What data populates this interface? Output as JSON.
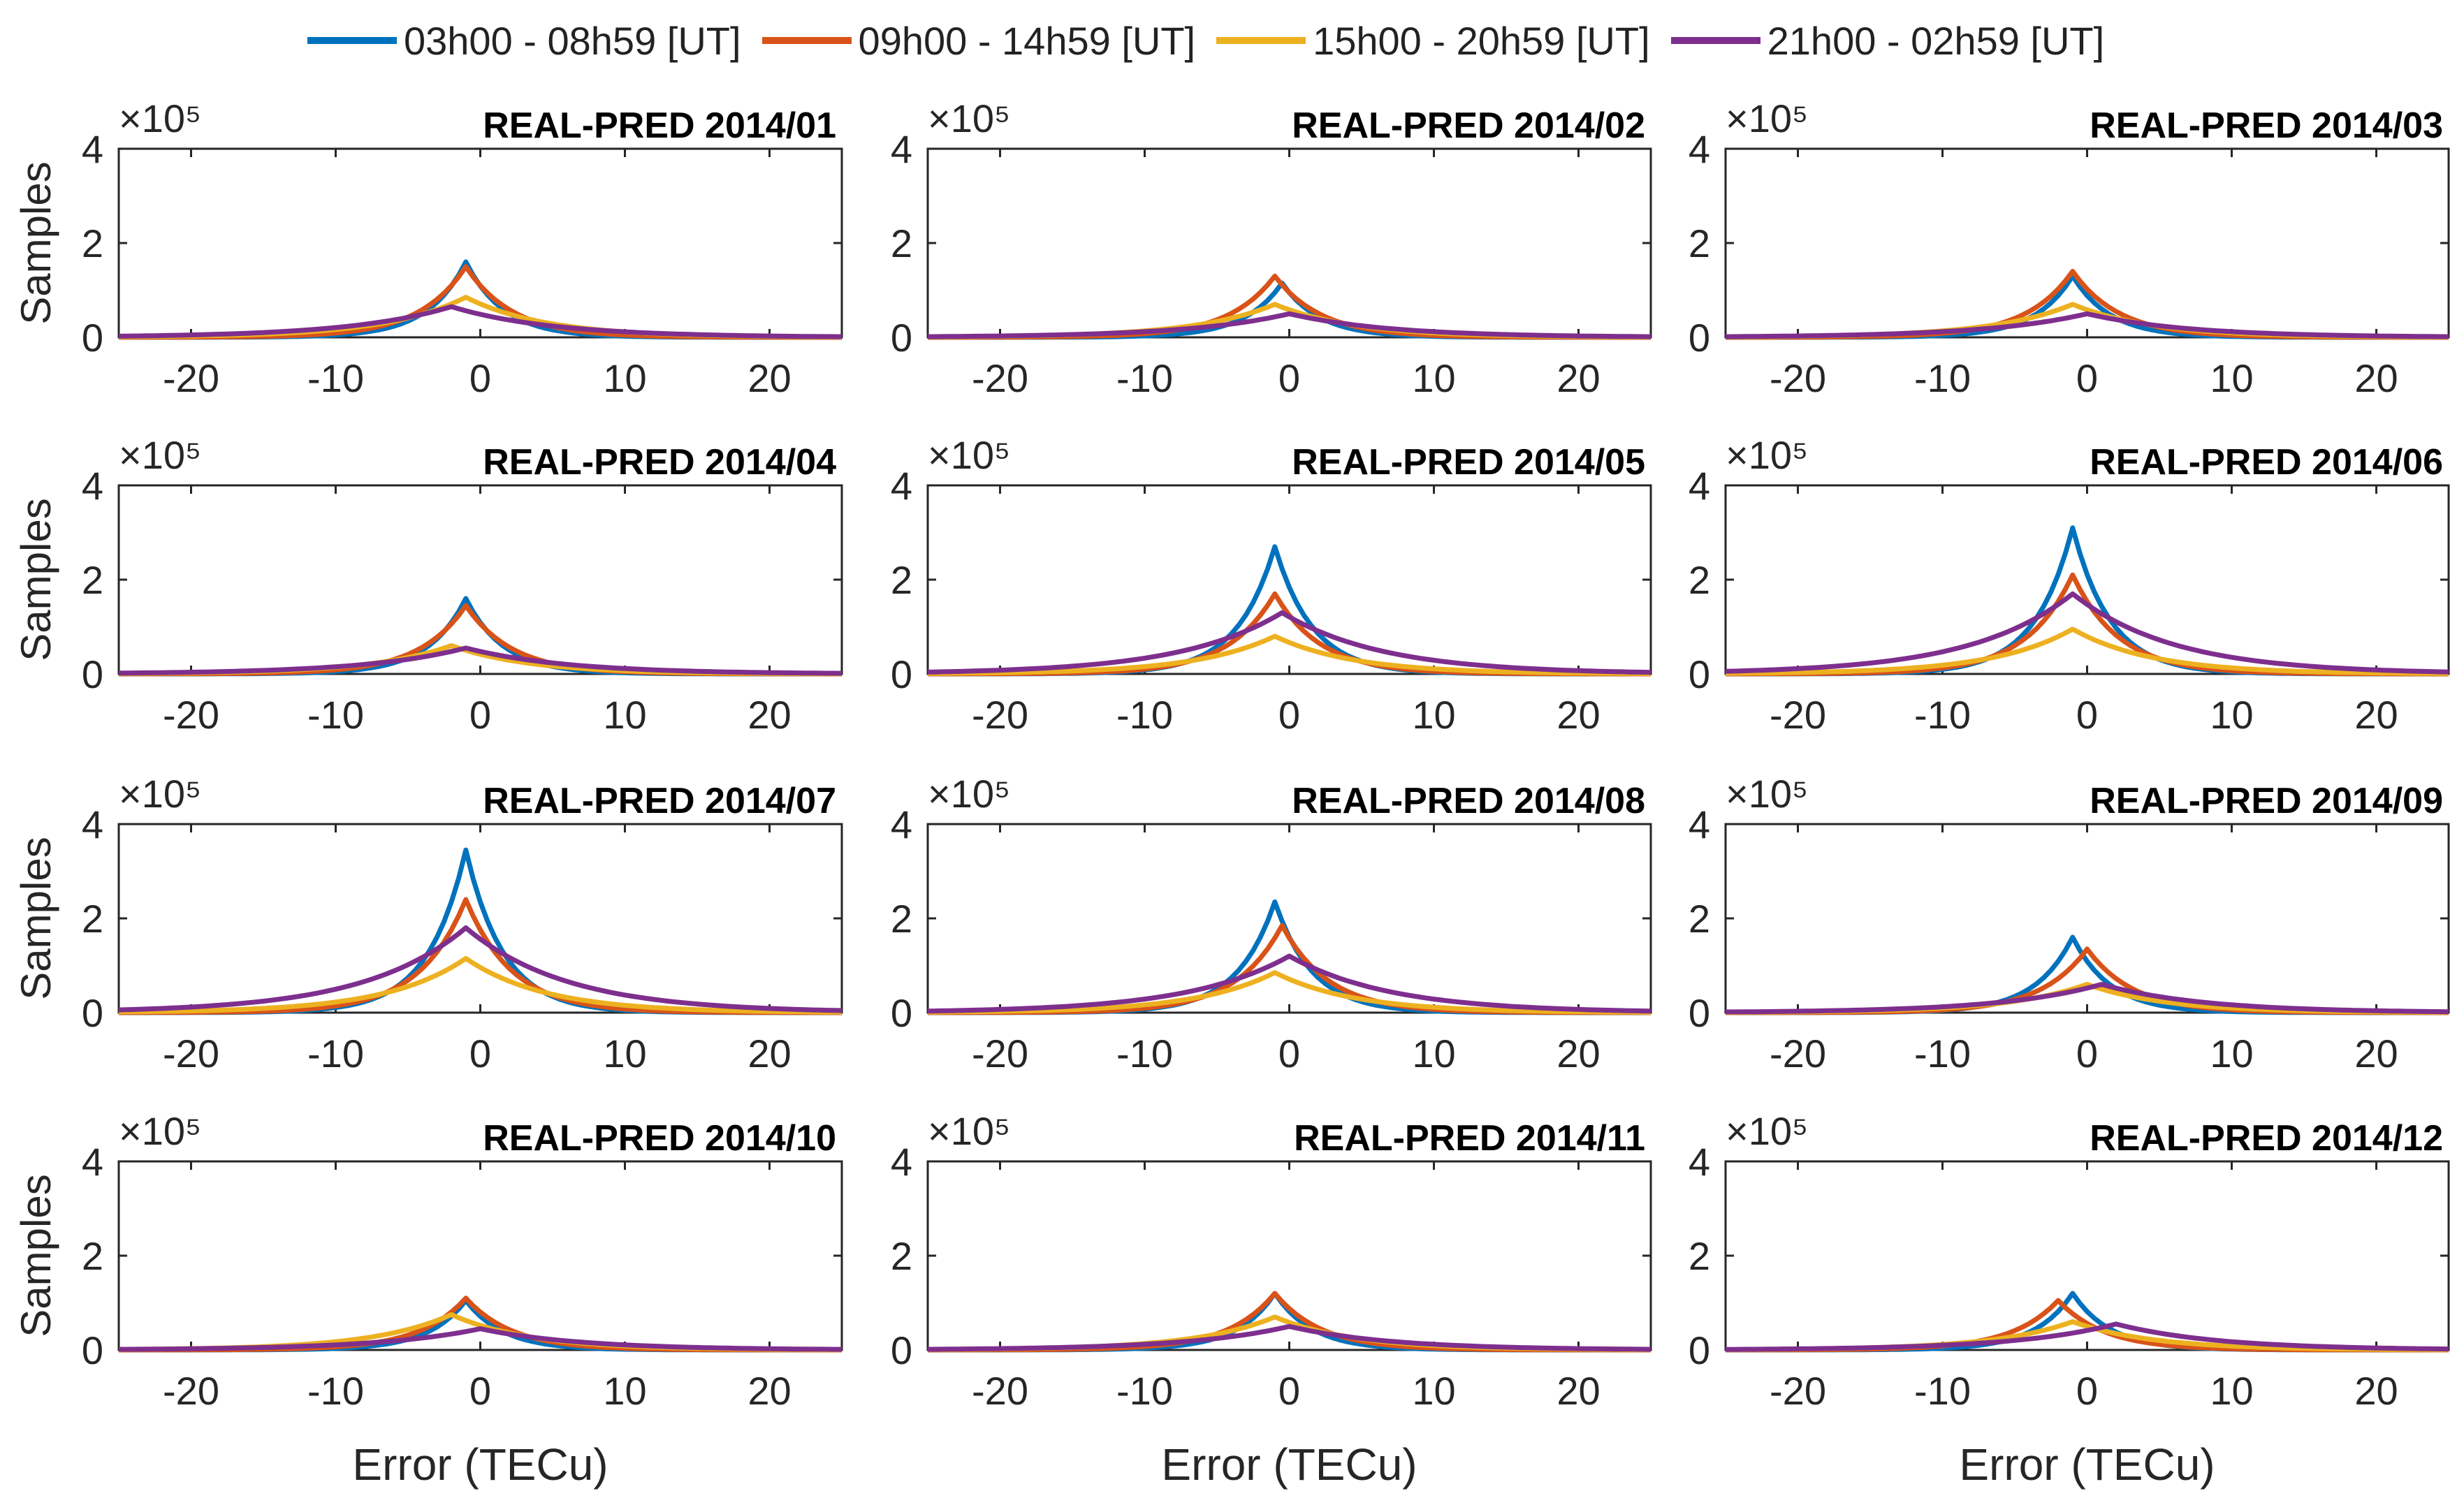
{
  "legend": [
    {
      "name": "03h00 - 08h59 [UT]",
      "color": "#0072BD"
    },
    {
      "name": "09h00 - 14h59 [UT]",
      "color": "#D95319"
    },
    {
      "name": "15h00 - 20h59 [UT]",
      "color": "#EDB120"
    },
    {
      "name": "21h00 - 02h59 [UT]",
      "color": "#7E2F8E"
    }
  ],
  "chart_data": [
    {
      "type": "line",
      "title": "REAL-PRED 2014/01",
      "xlabel": "",
      "ylabel": "Samples",
      "xlim": [
        -25,
        25
      ],
      "ylim": [
        0,
        4
      ],
      "xticks": [
        "-20",
        "-10",
        "0",
        "10",
        "20"
      ],
      "yticks": [
        "0",
        "2",
        "4"
      ],
      "multiplier": "×10⁵",
      "grid": false,
      "legend_position": "top",
      "series": [
        {
          "name": "03h00 - 08h59 [UT]",
          "peak_x": -1,
          "peak_y": 1.6
        },
        {
          "name": "09h00 - 14h59 [UT]",
          "peak_x": -1,
          "peak_y": 1.5
        },
        {
          "name": "15h00 - 20h59 [UT]",
          "peak_x": -1,
          "peak_y": 0.85
        },
        {
          "name": "21h00 - 02h59 [UT]",
          "peak_x": -2,
          "peak_y": 0.65
        }
      ]
    },
    {
      "type": "line",
      "title": "REAL-PRED 2014/02",
      "xlabel": "",
      "ylabel": "",
      "xlim": [
        -25,
        25
      ],
      "ylim": [
        0,
        4
      ],
      "xticks": [
        "-20",
        "-10",
        "0",
        "10",
        "20"
      ],
      "yticks": [
        "0",
        "2",
        "4"
      ],
      "multiplier": "×10⁵",
      "grid": false,
      "legend_position": "top",
      "series": [
        {
          "name": "03h00 - 08h59 [UT]",
          "peak_x": -0.5,
          "peak_y": 1.15
        },
        {
          "name": "09h00 - 14h59 [UT]",
          "peak_x": -1,
          "peak_y": 1.3
        },
        {
          "name": "15h00 - 20h59 [UT]",
          "peak_x": -1,
          "peak_y": 0.7
        },
        {
          "name": "21h00 - 02h59 [UT]",
          "peak_x": 0,
          "peak_y": 0.5
        }
      ]
    },
    {
      "type": "line",
      "title": "REAL-PRED 2014/03",
      "xlabel": "",
      "ylabel": "",
      "xlim": [
        -25,
        25
      ],
      "ylim": [
        0,
        4
      ],
      "xticks": [
        "-20",
        "-10",
        "0",
        "10",
        "20"
      ],
      "yticks": [
        "0",
        "2",
        "4"
      ],
      "multiplier": "×10⁵",
      "grid": false,
      "legend_position": "top",
      "series": [
        {
          "name": "03h00 - 08h59 [UT]",
          "peak_x": -1,
          "peak_y": 1.3
        },
        {
          "name": "09h00 - 14h59 [UT]",
          "peak_x": -1,
          "peak_y": 1.4
        },
        {
          "name": "15h00 - 20h59 [UT]",
          "peak_x": -1,
          "peak_y": 0.7
        },
        {
          "name": "21h00 - 02h59 [UT]",
          "peak_x": 0,
          "peak_y": 0.5
        }
      ]
    },
    {
      "type": "line",
      "title": "REAL-PRED 2014/04",
      "xlabel": "",
      "ylabel": "Samples",
      "xlim": [
        -25,
        25
      ],
      "ylim": [
        0,
        4
      ],
      "xticks": [
        "-20",
        "-10",
        "0",
        "10",
        "20"
      ],
      "yticks": [
        "0",
        "2",
        "4"
      ],
      "multiplier": "×10⁵",
      "grid": false,
      "legend_position": "top",
      "series": [
        {
          "name": "03h00 - 08h59 [UT]",
          "peak_x": -1,
          "peak_y": 1.6
        },
        {
          "name": "09h00 - 14h59 [UT]",
          "peak_x": -1,
          "peak_y": 1.45
        },
        {
          "name": "15h00 - 20h59 [UT]",
          "peak_x": -2,
          "peak_y": 0.6
        },
        {
          "name": "21h00 - 02h59 [UT]",
          "peak_x": -1,
          "peak_y": 0.55
        }
      ]
    },
    {
      "type": "line",
      "title": "REAL-PRED 2014/05",
      "xlabel": "",
      "ylabel": "",
      "xlim": [
        -25,
        25
      ],
      "ylim": [
        0,
        4
      ],
      "xticks": [
        "-20",
        "-10",
        "0",
        "10",
        "20"
      ],
      "yticks": [
        "0",
        "2",
        "4"
      ],
      "multiplier": "×10⁵",
      "grid": false,
      "legend_position": "top",
      "series": [
        {
          "name": "03h00 - 08h59 [UT]",
          "peak_x": -1,
          "peak_y": 2.7
        },
        {
          "name": "09h00 - 14h59 [UT]",
          "peak_x": -1,
          "peak_y": 1.7
        },
        {
          "name": "15h00 - 20h59 [UT]",
          "peak_x": -1,
          "peak_y": 0.8
        },
        {
          "name": "21h00 - 02h59 [UT]",
          "peak_x": -0.5,
          "peak_y": 1.3
        }
      ]
    },
    {
      "type": "line",
      "title": "REAL-PRED 2014/06",
      "xlabel": "",
      "ylabel": "",
      "xlim": [
        -25,
        25
      ],
      "ylim": [
        0,
        4
      ],
      "xticks": [
        "-20",
        "-10",
        "0",
        "10",
        "20"
      ],
      "yticks": [
        "0",
        "2",
        "4"
      ],
      "multiplier": "×10⁵",
      "grid": false,
      "legend_position": "top",
      "series": [
        {
          "name": "03h00 - 08h59 [UT]",
          "peak_x": -1,
          "peak_y": 3.1
        },
        {
          "name": "09h00 - 14h59 [UT]",
          "peak_x": -1,
          "peak_y": 2.1
        },
        {
          "name": "15h00 - 20h59 [UT]",
          "peak_x": -1,
          "peak_y": 0.95
        },
        {
          "name": "21h00 - 02h59 [UT]",
          "peak_x": -1,
          "peak_y": 1.7
        }
      ]
    },
    {
      "type": "line",
      "title": "REAL-PRED 2014/07",
      "xlabel": "",
      "ylabel": "Samples",
      "xlim": [
        -25,
        25
      ],
      "ylim": [
        0,
        4
      ],
      "xticks": [
        "-20",
        "-10",
        "0",
        "10",
        "20"
      ],
      "yticks": [
        "0",
        "2",
        "4"
      ],
      "multiplier": "×10⁵",
      "grid": false,
      "legend_position": "top",
      "series": [
        {
          "name": "03h00 - 08h59 [UT]",
          "peak_x": -1,
          "peak_y": 3.45
        },
        {
          "name": "09h00 - 14h59 [UT]",
          "peak_x": -1,
          "peak_y": 2.4
        },
        {
          "name": "15h00 - 20h59 [UT]",
          "peak_x": -1,
          "peak_y": 1.15
        },
        {
          "name": "21h00 - 02h59 [UT]",
          "peak_x": -1,
          "peak_y": 1.8
        }
      ]
    },
    {
      "type": "line",
      "title": "REAL-PRED 2014/08",
      "xlabel": "",
      "ylabel": "",
      "xlim": [
        -25,
        25
      ],
      "ylim": [
        0,
        4
      ],
      "xticks": [
        "-20",
        "-10",
        "0",
        "10",
        "20"
      ],
      "yticks": [
        "0",
        "2",
        "4"
      ],
      "multiplier": "×10⁵",
      "grid": false,
      "legend_position": "top",
      "series": [
        {
          "name": "03h00 - 08h59 [UT]",
          "peak_x": -1,
          "peak_y": 2.35
        },
        {
          "name": "09h00 - 14h59 [UT]",
          "peak_x": -0.5,
          "peak_y": 1.85
        },
        {
          "name": "15h00 - 20h59 [UT]",
          "peak_x": -1,
          "peak_y": 0.85
        },
        {
          "name": "21h00 - 02h59 [UT]",
          "peak_x": 0,
          "peak_y": 1.2
        }
      ]
    },
    {
      "type": "line",
      "title": "REAL-PRED 2014/09",
      "xlabel": "",
      "ylabel": "",
      "xlim": [
        -25,
        25
      ],
      "ylim": [
        0,
        4
      ],
      "xticks": [
        "-20",
        "-10",
        "0",
        "10",
        "20"
      ],
      "yticks": [
        "0",
        "2",
        "4"
      ],
      "multiplier": "×10⁵",
      "grid": false,
      "legend_position": "top",
      "series": [
        {
          "name": "03h00 - 08h59 [UT]",
          "peak_x": -1,
          "peak_y": 1.6
        },
        {
          "name": "09h00 - 14h59 [UT]",
          "peak_x": 0,
          "peak_y": 1.35
        },
        {
          "name": "15h00 - 20h59 [UT]",
          "peak_x": 0,
          "peak_y": 0.6
        },
        {
          "name": "21h00 - 02h59 [UT]",
          "peak_x": 1,
          "peak_y": 0.6
        }
      ]
    },
    {
      "type": "line",
      "title": "REAL-PRED 2014/10",
      "xlabel": "Error (TECu)",
      "ylabel": "Samples",
      "xlim": [
        -25,
        25
      ],
      "ylim": [
        0,
        4
      ],
      "xticks": [
        "-20",
        "-10",
        "0",
        "10",
        "20"
      ],
      "yticks": [
        "0",
        "2",
        "4"
      ],
      "multiplier": "×10⁵",
      "grid": false,
      "legend_position": "top",
      "series": [
        {
          "name": "03h00 - 08h59 [UT]",
          "peak_x": -1,
          "peak_y": 1.05
        },
        {
          "name": "09h00 - 14h59 [UT]",
          "peak_x": -1,
          "peak_y": 1.1
        },
        {
          "name": "15h00 - 20h59 [UT]",
          "peak_x": -2,
          "peak_y": 0.75
        },
        {
          "name": "21h00 - 02h59 [UT]",
          "peak_x": 0,
          "peak_y": 0.45
        }
      ]
    },
    {
      "type": "line",
      "title": "REAL-PRED 2014/11",
      "xlabel": "Error (TECu)",
      "ylabel": "",
      "xlim": [
        -25,
        25
      ],
      "ylim": [
        0,
        4
      ],
      "xticks": [
        "-20",
        "-10",
        "0",
        "10",
        "20"
      ],
      "yticks": [
        "0",
        "2",
        "4"
      ],
      "multiplier": "×10⁵",
      "grid": false,
      "legend_position": "top",
      "series": [
        {
          "name": "03h00 - 08h59 [UT]",
          "peak_x": -1,
          "peak_y": 1.2
        },
        {
          "name": "09h00 - 14h59 [UT]",
          "peak_x": -1,
          "peak_y": 1.2
        },
        {
          "name": "15h00 - 20h59 [UT]",
          "peak_x": -1,
          "peak_y": 0.7
        },
        {
          "name": "21h00 - 02h59 [UT]",
          "peak_x": 0,
          "peak_y": 0.5
        }
      ]
    },
    {
      "type": "line",
      "title": "REAL-PRED 2014/12",
      "xlabel": "Error (TECu)",
      "ylabel": "",
      "xlim": [
        -25,
        25
      ],
      "ylim": [
        0,
        4
      ],
      "xticks": [
        "-20",
        "-10",
        "0",
        "10",
        "20"
      ],
      "yticks": [
        "0",
        "2",
        "4"
      ],
      "multiplier": "×10⁵",
      "grid": false,
      "legend_position": "top",
      "series": [
        {
          "name": "03h00 - 08h59 [UT]",
          "peak_x": -1,
          "peak_y": 1.2
        },
        {
          "name": "09h00 - 14h59 [UT]",
          "peak_x": -2,
          "peak_y": 1.05
        },
        {
          "name": "15h00 - 20h59 [UT]",
          "peak_x": -1,
          "peak_y": 0.6
        },
        {
          "name": "21h00 - 02h59 [UT]",
          "peak_x": 2,
          "peak_y": 0.55
        }
      ]
    }
  ]
}
